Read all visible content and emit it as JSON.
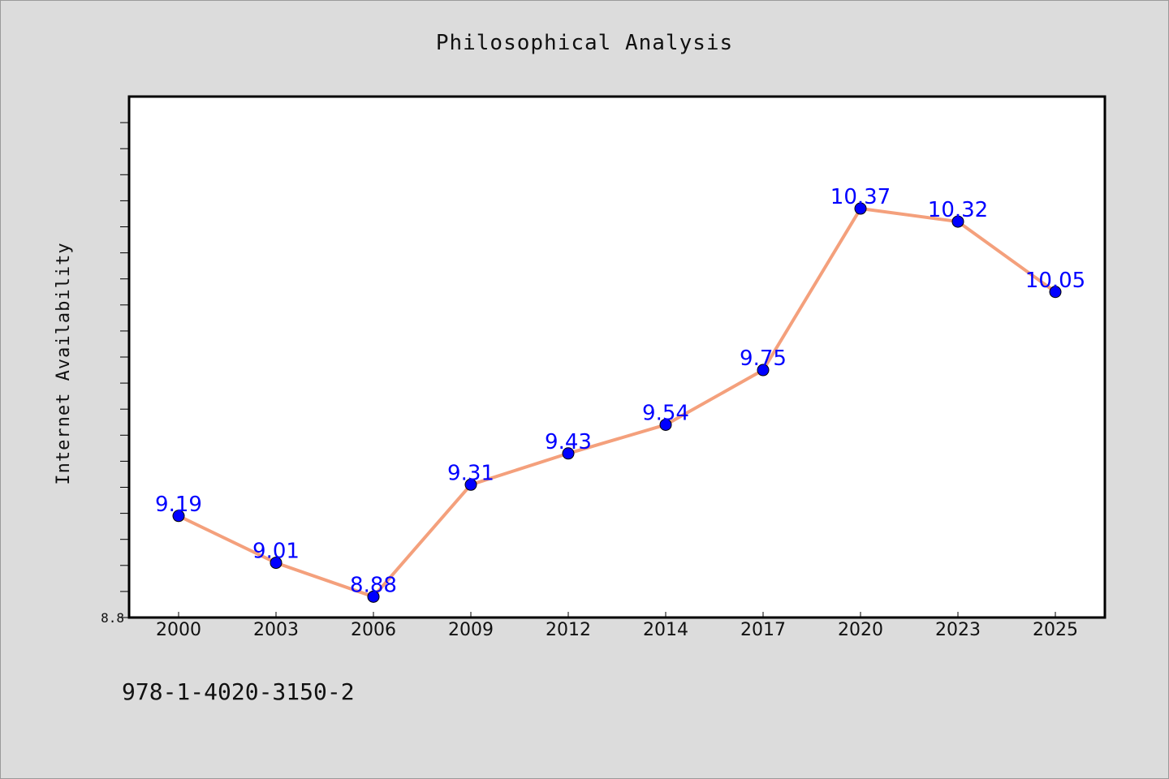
{
  "chart_data": {
    "type": "line",
    "title": "Philosophical Analysis",
    "xlabel": "",
    "ylabel": "Internet Availability",
    "categories": [
      "2000",
      "2003",
      "2006",
      "2009",
      "2012",
      "2014",
      "2017",
      "2020",
      "2023",
      "2025"
    ],
    "series": [
      {
        "values": [
          9.19,
          9.01,
          8.88,
          9.31,
          9.43,
          9.54,
          9.75,
          10.37,
          10.32,
          10.05
        ],
        "line_color": "#f4a07c",
        "marker_color": "#0000ff"
      }
    ],
    "data_labels": [
      "9.19",
      "9.01",
      "8.88",
      "9.31",
      "9.43",
      "9.54",
      "9.75",
      "10.37",
      "10.32",
      "10.05"
    ],
    "ylim": [
      8.8,
      10.8
    ],
    "yticks_labeled": [
      "8.8"
    ],
    "grid": false,
    "legend": "none",
    "footnote": "978-1-4020-3150-2",
    "colors": {
      "background": "#dcdcdc",
      "plot_area": "#ffffff",
      "label": "#0000ff"
    }
  }
}
